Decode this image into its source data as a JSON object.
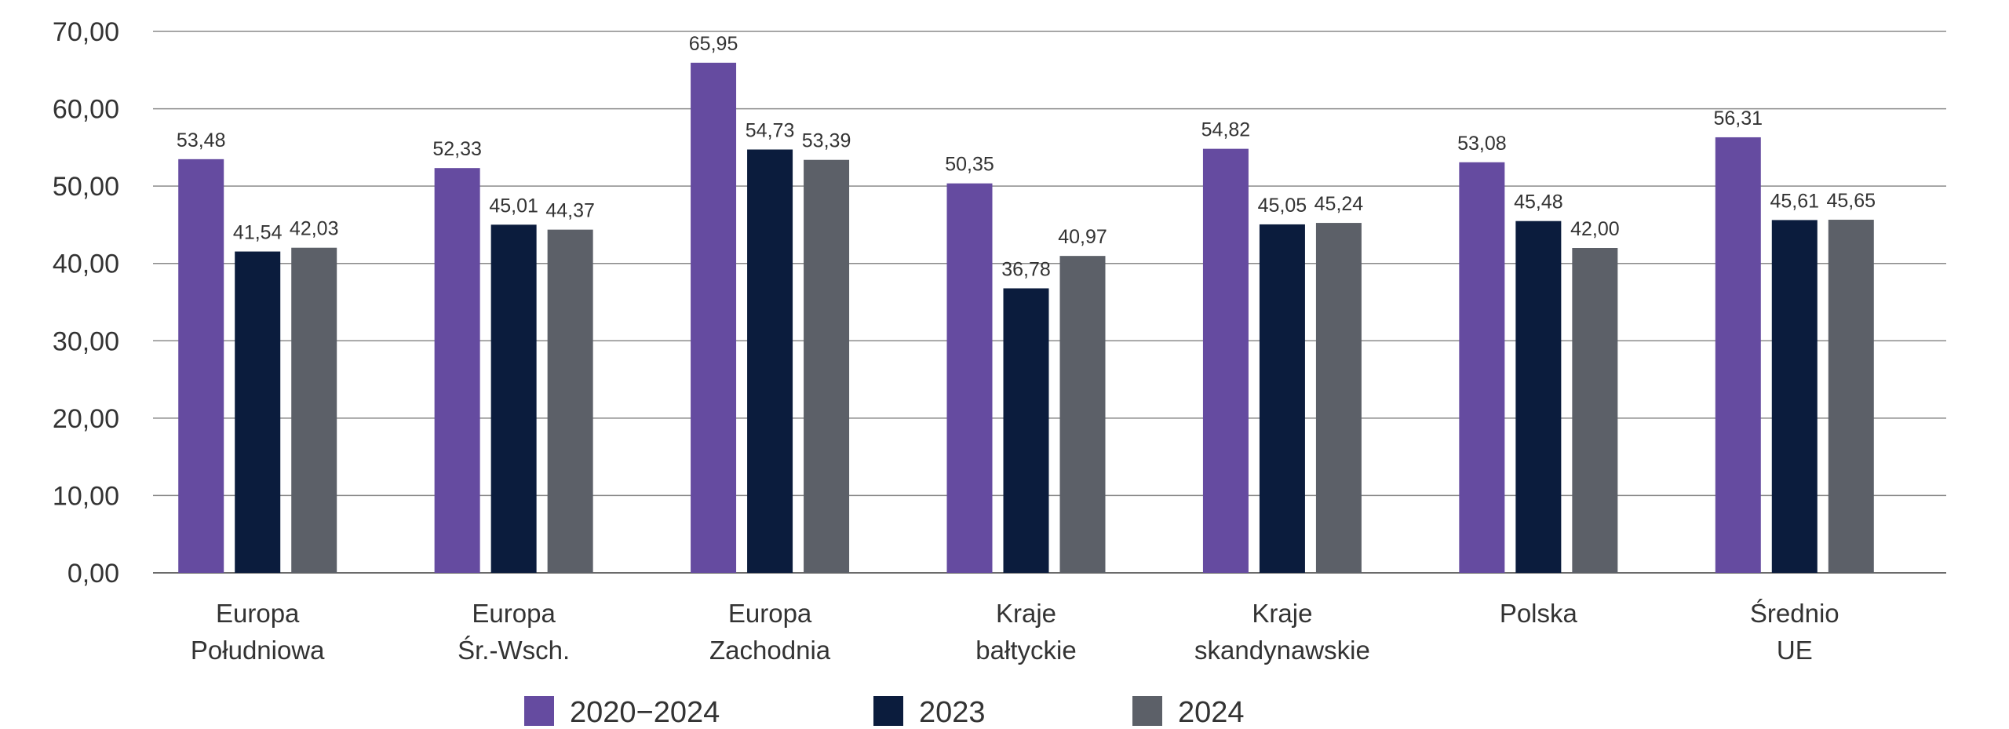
{
  "chart_data": {
    "type": "bar",
    "title": "",
    "xlabel": "",
    "ylabel": "",
    "ylim": [
      0,
      70
    ],
    "yticks": [
      "0,00",
      "10,00",
      "20,00",
      "30,00",
      "40,00",
      "50,00",
      "60,00",
      "70,00"
    ],
    "grid": true,
    "legend_position": "bottom",
    "categories": [
      [
        "Europa",
        "Południowa"
      ],
      [
        "Europa",
        "Śr.-Wsch."
      ],
      [
        "Europa",
        "Zachodnia"
      ],
      [
        "Kraje",
        "bałtyckie"
      ],
      [
        "Kraje",
        "skandynawskie"
      ],
      [
        "Polska"
      ],
      [
        "Średnio",
        "UE"
      ]
    ],
    "series": [
      {
        "name": "2020−2024",
        "color": "#654ba0",
        "values": [
          53.48,
          52.33,
          65.95,
          50.35,
          54.82,
          53.08,
          56.31
        ],
        "labels": [
          "53,48",
          "52,33",
          "65,95",
          "50,35",
          "54,82",
          "53,08",
          "56,31"
        ]
      },
      {
        "name": "2023",
        "color": "#0b1c3d",
        "values": [
          41.54,
          45.01,
          54.73,
          36.78,
          45.05,
          45.48,
          45.61
        ],
        "labels": [
          "41,54",
          "45,01",
          "54,73",
          "36,78",
          "45,05",
          "45,48",
          "45,61"
        ]
      },
      {
        "name": "2024",
        "color": "#5c6068",
        "values": [
          42.03,
          44.37,
          53.39,
          40.97,
          45.24,
          42.0,
          45.65
        ],
        "labels": [
          "42,03",
          "44,37",
          "53,39",
          "40,97",
          "45,24",
          "42,00",
          "45,65"
        ]
      }
    ]
  }
}
